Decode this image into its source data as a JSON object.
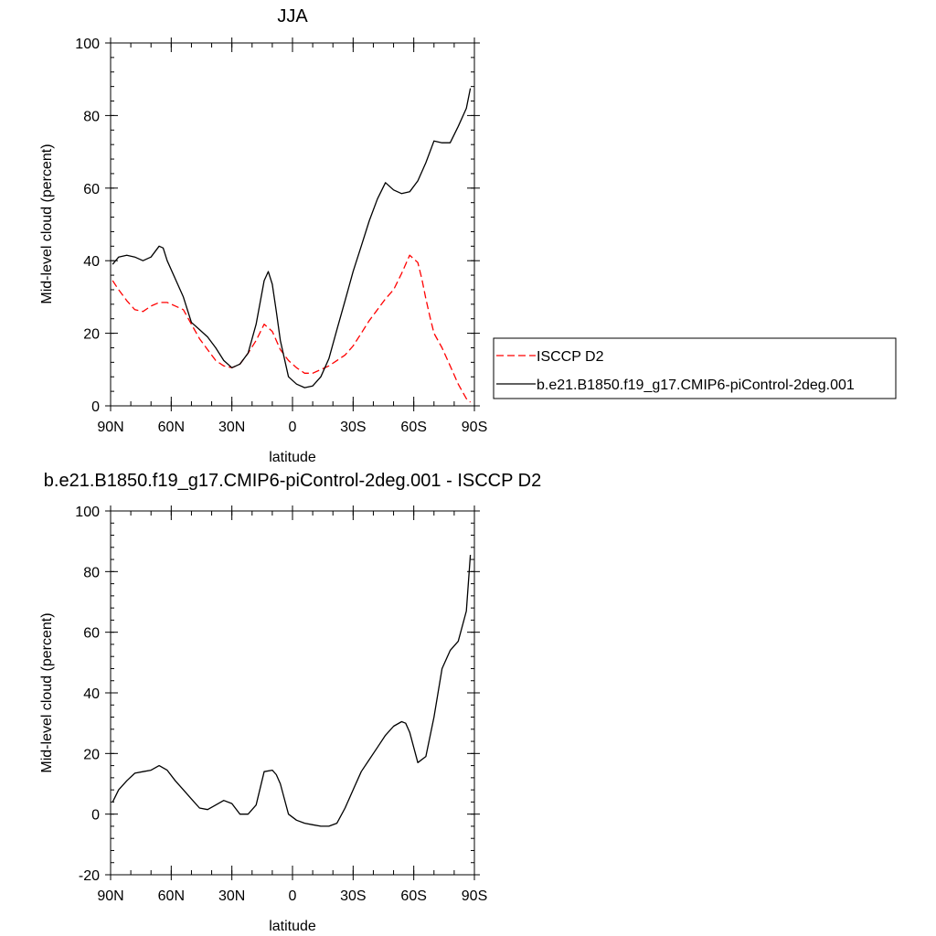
{
  "chart_data": [
    {
      "type": "line",
      "title": "JJA",
      "xlabel": "latitude",
      "ylabel": "Mid-level cloud (percent)",
      "xlim": [
        90,
        -90
      ],
      "ylim": [
        0,
        100
      ],
      "xticks": [
        {
          "value": 90,
          "label": "90N"
        },
        {
          "value": 60,
          "label": "60N"
        },
        {
          "value": 30,
          "label": "30N"
        },
        {
          "value": 0,
          "label": "0"
        },
        {
          "value": -30,
          "label": "30S"
        },
        {
          "value": -60,
          "label": "60S"
        },
        {
          "value": -90,
          "label": "90S"
        }
      ],
      "yticks": [
        {
          "value": 0,
          "label": "0"
        },
        {
          "value": 20,
          "label": "20"
        },
        {
          "value": 40,
          "label": "40"
        },
        {
          "value": 60,
          "label": "60"
        },
        {
          "value": 80,
          "label": "80"
        },
        {
          "value": 100,
          "label": "100"
        }
      ],
      "legend": {
        "placement": "right",
        "entries": [
          "ISCCP D2",
          "b.e21.B1850.f19_g17.CMIP6-piControl-2deg.001"
        ]
      },
      "series": [
        {
          "name": "ISCCP D2",
          "color": "#ff0000",
          "dash": "dashed",
          "x": [
            89,
            86,
            82,
            78,
            74,
            70,
            66,
            62,
            58,
            54,
            50,
            46,
            42,
            38,
            34,
            30,
            26,
            22,
            18,
            14,
            10,
            6,
            2,
            -2,
            -6,
            -10,
            -14,
            -18,
            -22,
            -26,
            -30,
            -34,
            -38,
            -42,
            -46,
            -50,
            -54,
            -58,
            -62,
            -64,
            -66,
            -68,
            -70,
            -74,
            -78,
            -82,
            -86,
            -88
          ],
          "values": [
            34.5,
            32,
            29,
            26.5,
            26,
            27.5,
            28.5,
            28.5,
            27.5,
            26.5,
            22.5,
            18.5,
            15.5,
            12.5,
            11,
            10.5,
            11.5,
            14.5,
            18,
            22.5,
            20.5,
            15.5,
            12.5,
            10.5,
            9,
            9,
            10,
            11,
            12.5,
            14,
            16.5,
            20,
            23.5,
            26.5,
            29.5,
            32,
            36.5,
            41.5,
            39.5,
            35,
            29.5,
            24.5,
            20,
            16,
            11,
            6,
            2,
            1
          ]
        },
        {
          "name": "b.e21.B1850.f19_g17.CMIP6-piControl-2deg.001",
          "color": "#000000",
          "dash": "solid",
          "x": [
            89,
            86,
            82,
            78,
            74,
            70,
            66,
            64,
            62,
            58,
            54,
            50,
            46,
            42,
            38,
            34,
            30,
            26,
            22,
            18,
            14,
            12,
            10,
            8,
            6,
            2,
            -2,
            -6,
            -10,
            -14,
            -18,
            -22,
            -26,
            -30,
            -34,
            -38,
            -42,
            -46,
            -50,
            -54,
            -58,
            -62,
            -66,
            -70,
            -74,
            -78,
            -82,
            -86,
            -88
          ],
          "values": [
            39,
            41,
            41.5,
            41,
            40,
            41,
            44,
            43.5,
            40,
            35,
            30,
            23,
            21,
            19,
            16,
            12.5,
            10.5,
            11.5,
            14.5,
            22.5,
            34.5,
            37,
            33.5,
            26,
            18,
            8,
            6,
            5,
            5.5,
            8,
            13,
            21,
            29,
            37,
            44,
            51,
            57,
            61.5,
            59.5,
            58.5,
            59,
            62,
            67,
            73,
            72.5,
            72.5,
            77,
            82,
            87.5
          ]
        }
      ]
    },
    {
      "type": "line",
      "title": "b.e21.B1850.f19_g17.CMIP6-piControl-2deg.001 - ISCCP D2",
      "xlabel": "latitude",
      "ylabel": "Mid-level cloud (percent)",
      "xlim": [
        90,
        -90
      ],
      "ylim": [
        -20,
        100
      ],
      "xticks": [
        {
          "value": 90,
          "label": "90N"
        },
        {
          "value": 60,
          "label": "60N"
        },
        {
          "value": 30,
          "label": "30N"
        },
        {
          "value": 0,
          "label": "0"
        },
        {
          "value": -30,
          "label": "30S"
        },
        {
          "value": -60,
          "label": "60S"
        },
        {
          "value": -90,
          "label": "90S"
        }
      ],
      "yticks": [
        {
          "value": -20,
          "label": "-20"
        },
        {
          "value": 0,
          "label": "0"
        },
        {
          "value": 20,
          "label": "20"
        },
        {
          "value": 40,
          "label": "40"
        },
        {
          "value": 60,
          "label": "60"
        },
        {
          "value": 80,
          "label": "80"
        },
        {
          "value": 100,
          "label": "100"
        }
      ],
      "series": [
        {
          "color": "#000000",
          "dash": "solid",
          "x": [
            89,
            86,
            82,
            78,
            74,
            70,
            66,
            62,
            58,
            54,
            50,
            46,
            42,
            38,
            34,
            30,
            26,
            22,
            18,
            14,
            10,
            8,
            6,
            2,
            -2,
            -6,
            -10,
            -14,
            -18,
            -22,
            -26,
            -30,
            -34,
            -38,
            -42,
            -46,
            -50,
            -54,
            -56,
            -58,
            -62,
            -66,
            -70,
            -74,
            -78,
            -82,
            -86,
            -88
          ],
          "values": [
            4,
            8,
            11,
            13.5,
            14,
            14.5,
            16,
            14.5,
            11,
            8,
            5,
            2,
            1.5,
            3,
            4.5,
            3.5,
            0,
            0,
            3,
            14,
            14.5,
            13,
            10,
            0,
            -2,
            -3,
            -3.5,
            -4,
            -4,
            -3,
            2,
            8,
            14,
            18,
            22,
            26,
            29,
            30.5,
            30,
            27,
            17,
            19,
            32,
            48,
            54,
            57,
            67,
            85.5
          ]
        }
      ]
    }
  ]
}
